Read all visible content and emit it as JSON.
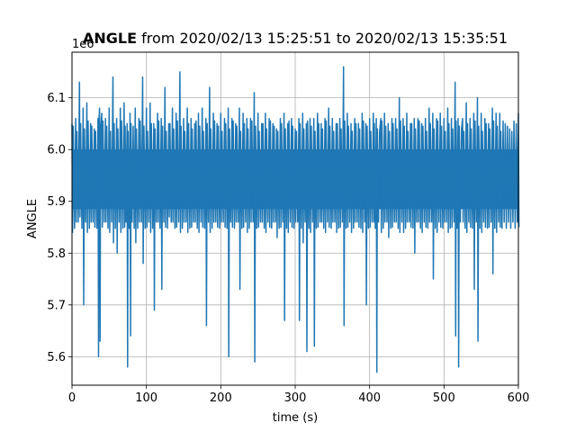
{
  "chart_data": {
    "type": "line",
    "title_bold": "ANGLE",
    "title_rest": " from 2020/02/13 15:25:51 to 2020/02/13 15:35:51",
    "xlabel": "time (s)",
    "ylabel": "ANGLE",
    "offset_text": "1e6",
    "xlim": [
      0,
      600
    ],
    "ylim": [
      5.545,
      6.188
    ],
    "xticks": [
      0,
      100,
      200,
      300,
      400,
      500,
      600
    ],
    "xtick_labels": [
      "0",
      "100",
      "200",
      "300",
      "400",
      "500",
      "600"
    ],
    "yticks": [
      5.6,
      5.7,
      5.8,
      5.9,
      6.0,
      6.1
    ],
    "ytick_labels": [
      "5.6",
      "5.7",
      "5.8",
      "5.9",
      "6.0",
      "6.1"
    ],
    "grid": true,
    "series": [
      {
        "color": "#1f77b4",
        "x": [
          0,
          5,
          10,
          15,
          20,
          25,
          30,
          35,
          37,
          40,
          45,
          50,
          55,
          60,
          65,
          70,
          74,
          78,
          85,
          90,
          95,
          100,
          105,
          110,
          115,
          120,
          125,
          130,
          135,
          140,
          145,
          150,
          155,
          160,
          165,
          170,
          175,
          180,
          185,
          190,
          195,
          200,
          205,
          210,
          215,
          220,
          225,
          230,
          235,
          240,
          245,
          250,
          255,
          260,
          265,
          270,
          275,
          280,
          285,
          290,
          295,
          300,
          305,
          310,
          315,
          320,
          325,
          330,
          335,
          340,
          345,
          350,
          355,
          360,
          365,
          370,
          375,
          380,
          385,
          390,
          395,
          400,
          405,
          409,
          415,
          420,
          425,
          430,
          435,
          440,
          445,
          450,
          455,
          460,
          465,
          470,
          475,
          480,
          485,
          490,
          495,
          500,
          505,
          510,
          515,
          519,
          525,
          530,
          535,
          540,
          545,
          550,
          555,
          560,
          565,
          570,
          575,
          600
        ],
        "upper": [
          6.05,
          6.06,
          6.13,
          6.08,
          6.09,
          6.05,
          6.04,
          6.06,
          6.08,
          6.07,
          6.06,
          6.08,
          6.14,
          6.06,
          6.08,
          6.09,
          6.05,
          6.07,
          6.08,
          6.06,
          6.14,
          6.08,
          6.09,
          6.05,
          6.07,
          6.06,
          6.12,
          6.05,
          6.08,
          6.07,
          6.15,
          6.06,
          6.08,
          6.06,
          6.05,
          6.07,
          6.08,
          6.06,
          6.12,
          6.07,
          6.05,
          6.07,
          6.06,
          6.08,
          6.06,
          6.05,
          6.08,
          6.07,
          6.06,
          6.06,
          6.11,
          6.07,
          6.05,
          6.07,
          6.06,
          6.05,
          6.04,
          6.06,
          6.07,
          6.05,
          6.06,
          6.04,
          6.06,
          6.07,
          6.05,
          6.06,
          6.06,
          6.07,
          6.05,
          6.06,
          6.08,
          6.06,
          6.05,
          6.06,
          6.16,
          6.07,
          6.05,
          6.06,
          6.05,
          6.07,
          6.05,
          6.06,
          6.07,
          6.06,
          6.06,
          6.07,
          6.05,
          6.06,
          6.06,
          6.1,
          6.06,
          6.07,
          6.05,
          6.06,
          6.06,
          6.05,
          6.06,
          6.08,
          6.07,
          6.06,
          6.07,
          6.06,
          6.08,
          6.06,
          6.13,
          6.06,
          6.06,
          6.09,
          6.06,
          6.07,
          6.1,
          6.07,
          6.06,
          6.05,
          6.08,
          6.07,
          6.07,
          6.07
        ],
        "lower": [
          5.84,
          5.86,
          5.87,
          5.7,
          5.84,
          5.86,
          5.85,
          5.6,
          5.63,
          5.85,
          5.86,
          5.84,
          5.82,
          5.8,
          5.84,
          5.85,
          5.58,
          5.64,
          5.82,
          5.86,
          5.78,
          5.85,
          5.84,
          5.69,
          5.86,
          5.73,
          5.85,
          5.87,
          5.86,
          5.85,
          5.84,
          5.86,
          5.84,
          5.85,
          5.86,
          5.84,
          5.85,
          5.66,
          5.84,
          5.86,
          5.85,
          5.86,
          5.85,
          5.6,
          5.85,
          5.86,
          5.73,
          5.85,
          5.84,
          5.86,
          5.59,
          5.85,
          5.86,
          5.84,
          5.85,
          5.86,
          5.83,
          5.85,
          5.67,
          5.84,
          5.85,
          5.86,
          5.67,
          5.82,
          5.61,
          5.84,
          5.62,
          5.85,
          5.86,
          5.84,
          5.85,
          5.86,
          5.84,
          5.85,
          5.66,
          5.85,
          5.84,
          5.86,
          5.85,
          5.84,
          5.7,
          5.85,
          5.86,
          5.57,
          5.84,
          5.86,
          5.83,
          5.85,
          5.86,
          5.84,
          5.84,
          5.86,
          5.85,
          5.8,
          5.86,
          5.84,
          5.85,
          5.86,
          5.75,
          5.84,
          5.85,
          5.86,
          5.84,
          5.85,
          5.64,
          5.58,
          5.86,
          5.84,
          5.85,
          5.73,
          5.63,
          5.84,
          5.85,
          5.85,
          5.76,
          5.84,
          5.85,
          5.85
        ]
      }
    ]
  }
}
